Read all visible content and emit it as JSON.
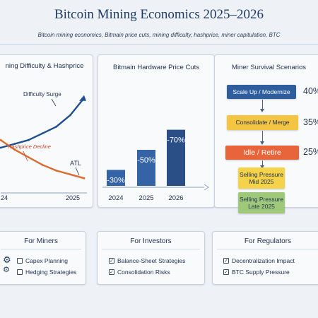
{
  "header": {
    "title": "Bitcoin Mining Economics 2025–2026",
    "subtitle": "Bitcoin mining economics, Bitmain price cuts, mining difficulty, hashprice, miner capitulation, BTC"
  },
  "difficulty_panel": {
    "title": "ning Difficulty & Hashprice",
    "annotations": {
      "surge": "Difficulty Surge",
      "decline": "Hashprice Decline",
      "atl": "ATL"
    },
    "x_labels": [
      "24",
      "2025"
    ],
    "colors": {
      "difficulty": "#1f4f8f",
      "hashprice": "#dd6a2c"
    }
  },
  "hardware_panel": {
    "title": "Bitmain Hardware Price Cuts",
    "colors": {
      "bar": "#3564a6",
      "bar_dark": "#2a4f86"
    }
  },
  "chart_data": [
    {
      "type": "line",
      "title": "ning Difficulty & Hashprice",
      "x": [
        "24",
        "",
        "",
        "",
        "",
        "",
        "2025"
      ],
      "series": [
        {
          "values": [
            40,
            44,
            48,
            55,
            62,
            74,
            92
          ]
        },
        {
          "values": [
            48,
            38,
            30,
            22,
            16,
            12,
            8
          ]
        }
      ]
    },
    {
      "type": "bar",
      "title": "Bitmain Hardware Price Cuts",
      "categories": [
        "2024",
        "2025",
        "2026"
      ],
      "values": [
        -30,
        -50,
        -70
      ],
      "data_labels": [
        "-30%",
        "-50%",
        "-70%"
      ]
    }
  ],
  "scenarios_panel": {
    "title": "Miner Survival Scenarios",
    "items": [
      {
        "label": "Scale Up / Modernize",
        "pct": "40%"
      },
      {
        "label": "Consolidate / Merge",
        "pct": "35%"
      },
      {
        "label": "Idle / Retire",
        "pct": "25%"
      }
    ],
    "pressure": [
      {
        "line1": "Selling Pressure",
        "line2": "Mid 2025"
      },
      {
        "line1": "Selling Pressure",
        "line2": "Late 2025"
      }
    ],
    "colors": {
      "scale": "#2f5e9e",
      "consolidate": "#f4c542",
      "idle": "#e8643a",
      "pressure_mid": "#f4d24a",
      "pressure_late": "#9fc97a"
    }
  },
  "miners": {
    "title": "For Miners",
    "items": [
      "Capex Planning",
      "Hedging Strategies"
    ],
    "icon": "gear-icon"
  },
  "investors": {
    "title": "For Investors",
    "items": [
      "Balance-Sheet Strategies",
      "Consolidation Risks"
    ],
    "marks": [
      "✓",
      "✓"
    ]
  },
  "regulators": {
    "title": "For Regulators",
    "items": [
      "Decentralization Impact",
      "BTC Supply Pressure"
    ],
    "marks": [
      "✓",
      "✓"
    ]
  }
}
